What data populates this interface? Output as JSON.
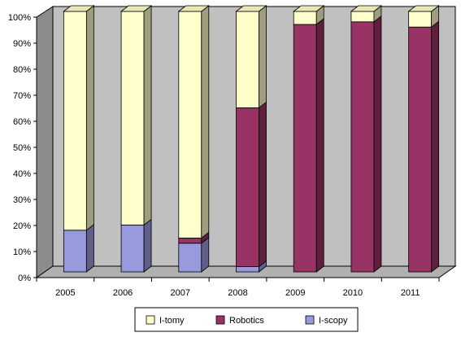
{
  "chart_data": {
    "type": "bar",
    "stacked": true,
    "percent_stacked": true,
    "three_d": true,
    "categories": [
      "2005",
      "2006",
      "2007",
      "2008",
      "2009",
      "2010",
      "2011"
    ],
    "series": [
      {
        "name": "I-scopy",
        "color": "#9999dd",
        "values": [
          16,
          18,
          11,
          2,
          0,
          0,
          0
        ]
      },
      {
        "name": "Robotics",
        "color": "#993366",
        "values": [
          0,
          0,
          2,
          61,
          95,
          96,
          94
        ]
      },
      {
        "name": "I-tomy",
        "color": "#ffffcc",
        "values": [
          84,
          82,
          87,
          37,
          5,
          4,
          6
        ]
      }
    ],
    "legend_order": [
      "I-tomy",
      "Robotics",
      "I-scopy"
    ],
    "yticks": [
      "0%",
      "10%",
      "20%",
      "30%",
      "40%",
      "50%",
      "60%",
      "70%",
      "80%",
      "90%",
      "100%"
    ],
    "ylim": [
      0,
      100
    ],
    "grid": false,
    "legend_position": "bottom",
    "wall_color": "#c0c0c0"
  }
}
